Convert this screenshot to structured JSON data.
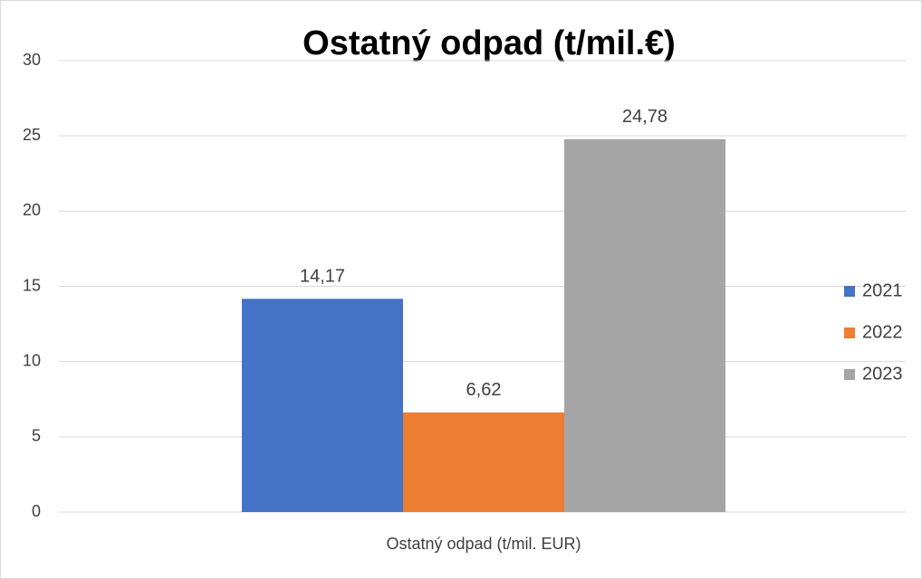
{
  "chart_data": {
    "type": "bar",
    "title": "Ostatný odpad (t/mil.€)",
    "categories": [
      "Ostatný odpad (t/mil. EUR)"
    ],
    "series": [
      {
        "name": "2021",
        "color": "#4472c4",
        "values": [
          14.17
        ],
        "value_labels": [
          "14,17"
        ]
      },
      {
        "name": "2022",
        "color": "#ed7d31",
        "values": [
          6.62
        ],
        "value_labels": [
          "6,62"
        ]
      },
      {
        "name": "2023",
        "color": "#a5a5a5",
        "values": [
          24.78
        ],
        "value_labels": [
          "24,78"
        ]
      }
    ],
    "ylim": [
      0,
      30
    ],
    "yticks": [
      0,
      5,
      10,
      15,
      20,
      25,
      30
    ],
    "grid": true,
    "legend": "right"
  }
}
